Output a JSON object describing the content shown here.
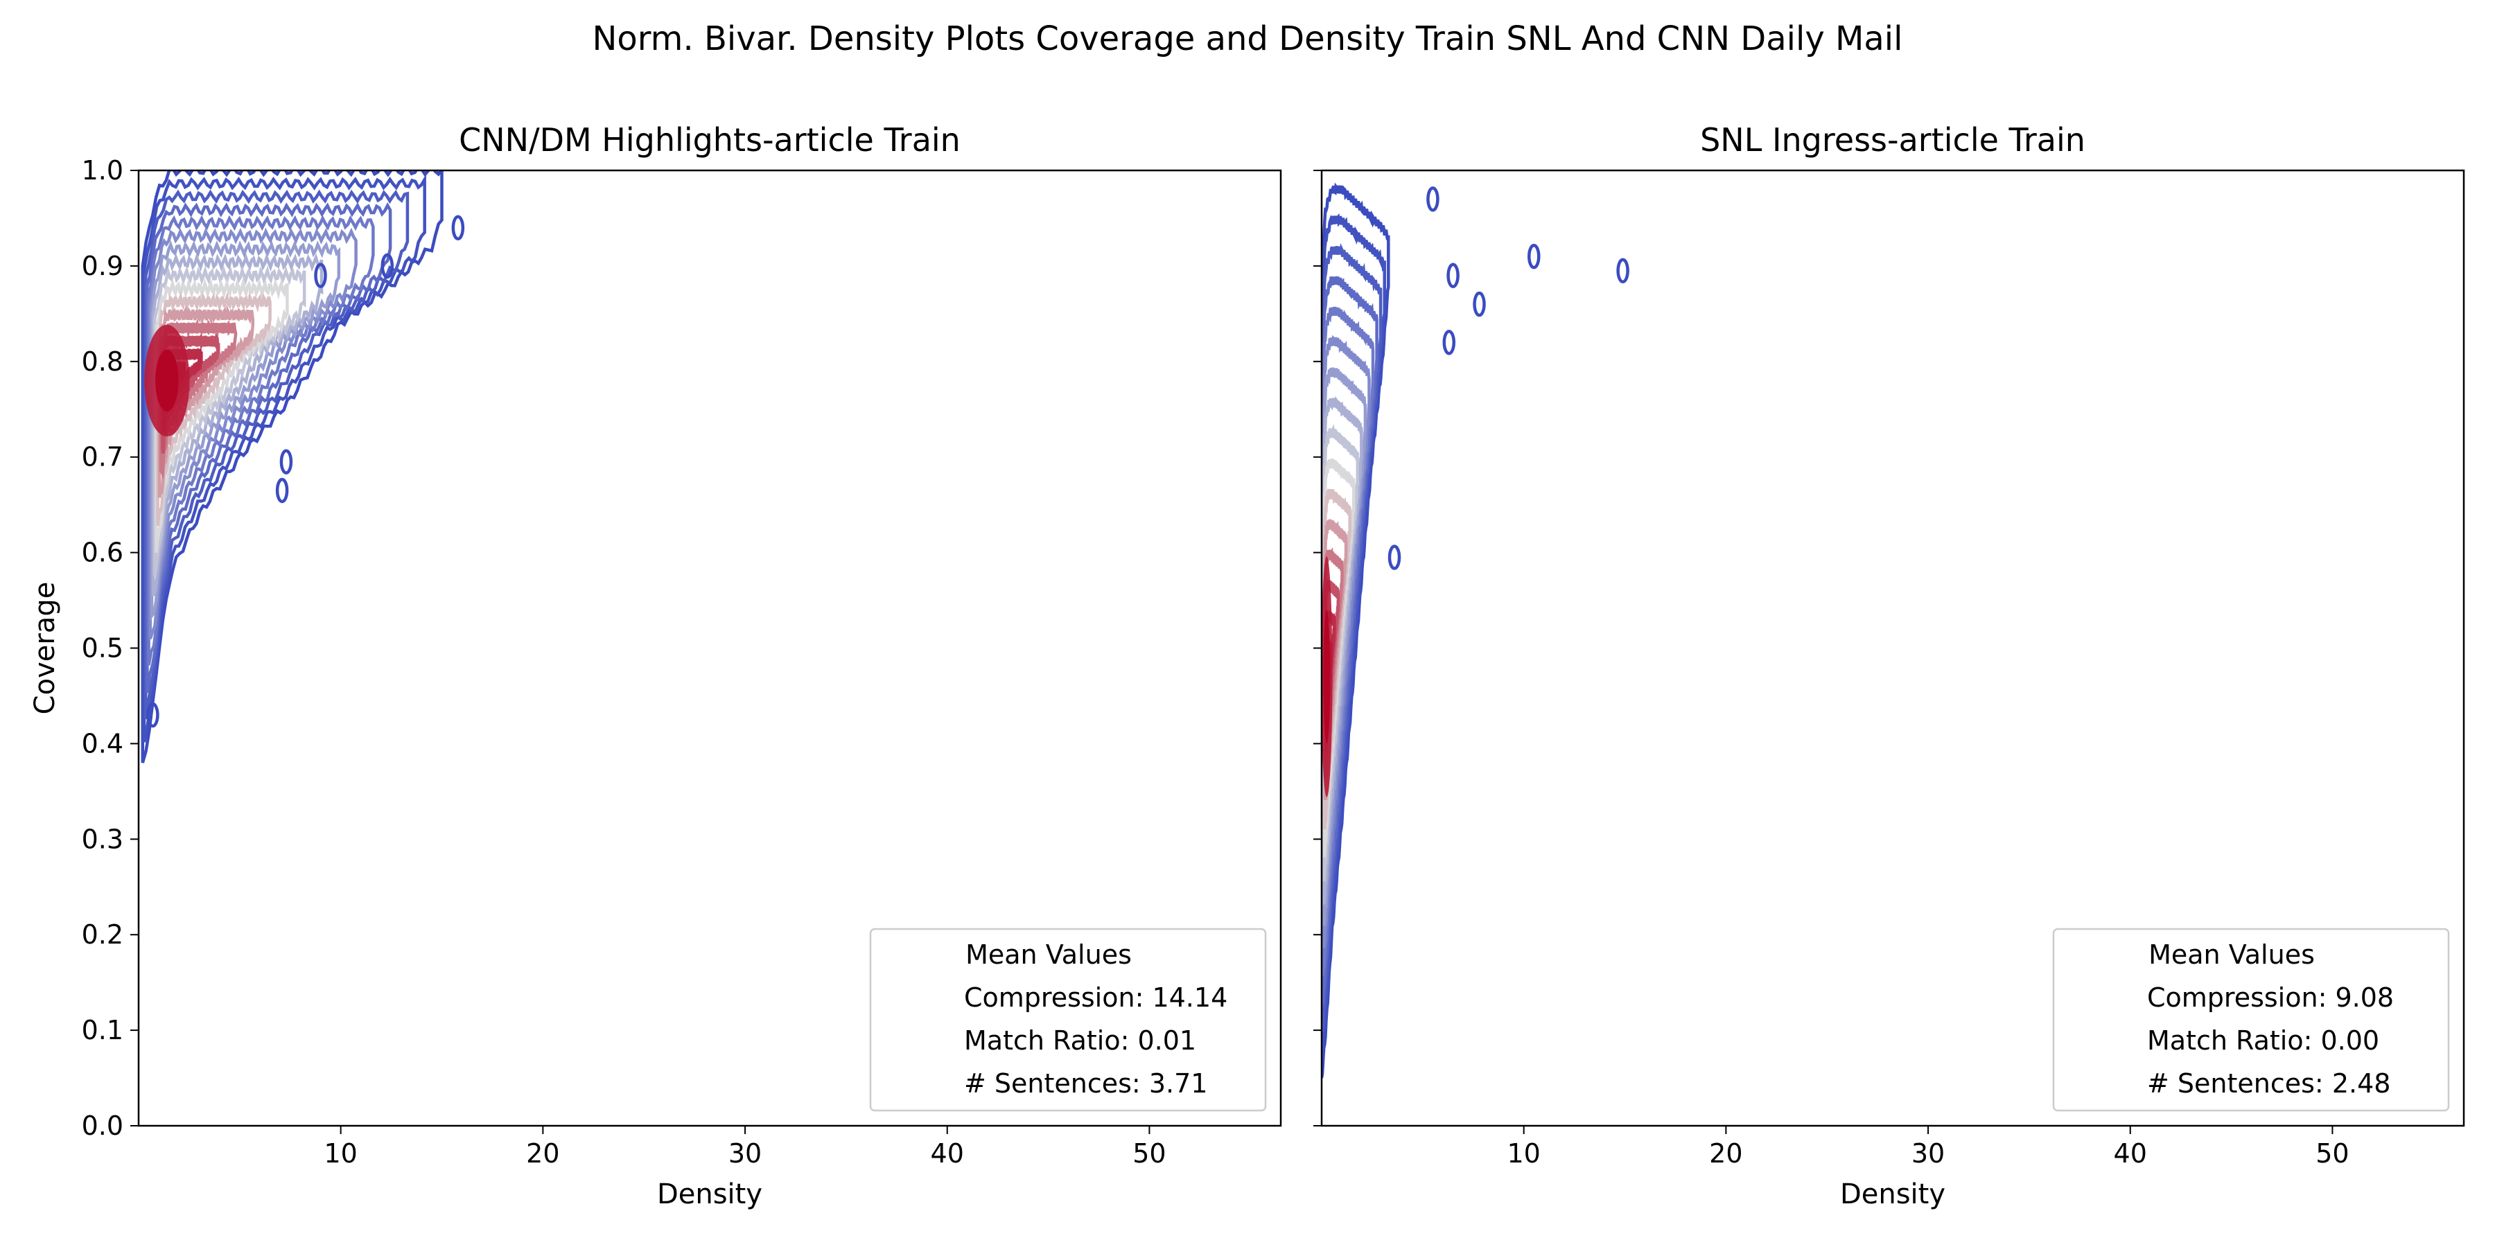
{
  "figure_title": "Norm. Bivar. Density Plots Coverage and Density Train SNL And CNN Daily Mail",
  "colors": {
    "contour_low": "#3b4cc0",
    "contour_mid": "#dddcdc",
    "contour_high": "#b40426",
    "axis": "#000000"
  },
  "chart_data": [
    {
      "type": "contour",
      "title": "CNN/DM Highlights-article Train",
      "xlabel": "Density",
      "ylabel": "Coverage",
      "xlim": [
        0,
        56.5
      ],
      "ylim": [
        0.0,
        1.0
      ],
      "xticks": [
        "10",
        "20",
        "30",
        "40",
        "50"
      ],
      "xtick_values": [
        10,
        20,
        30,
        40,
        50
      ],
      "yticks": [
        "0.0",
        "0.1",
        "0.2",
        "0.3",
        "0.4",
        "0.5",
        "0.6",
        "0.7",
        "0.8",
        "0.9",
        "1.0"
      ],
      "ytick_values": [
        0.0,
        0.1,
        0.2,
        0.3,
        0.4,
        0.5,
        0.6,
        0.7,
        0.8,
        0.9,
        1.0
      ],
      "colormap": "coolwarm",
      "peak": {
        "x": 1.4,
        "y": 0.78
      },
      "spread": {
        "sx": 3.2,
        "sy": 0.13
      },
      "envelope": {
        "x": [
          0.2,
          0.6,
          1.0,
          1.6,
          3.0,
          5.0,
          7.5,
          10.0,
          12.5,
          14.5,
          15.0
        ],
        "y_low": [
          0.38,
          0.42,
          0.5,
          0.58,
          0.64,
          0.7,
          0.76,
          0.84,
          0.88,
          0.92,
          0.95
        ],
        "y_high": [
          0.9,
          0.95,
          0.98,
          1.0,
          1.0,
          1.0,
          1.0,
          1.0,
          1.0,
          1.0,
          1.0
        ]
      },
      "isolated_islands": [
        {
          "x": 7.3,
          "y": 0.695
        },
        {
          "x": 7.1,
          "y": 0.665
        },
        {
          "x": 9.0,
          "y": 0.89
        },
        {
          "x": 12.3,
          "y": 0.9
        },
        {
          "x": 15.8,
          "y": 0.94
        },
        {
          "x": 0.7,
          "y": 0.43
        }
      ],
      "legend": {
        "title": "Mean Values",
        "lines": [
          "Compression: 14.14",
          "Match Ratio: 0.01",
          "# Sentences: 3.71"
        ],
        "placement": "lower-right"
      }
    },
    {
      "type": "contour",
      "title": "SNL Ingress-article Train",
      "xlabel": "Density",
      "xlim": [
        0,
        56.5
      ],
      "ylim": [
        0.0,
        1.0
      ],
      "xticks": [
        "10",
        "20",
        "30",
        "40",
        "50"
      ],
      "xtick_values": [
        10,
        20,
        30,
        40,
        50
      ],
      "ytick_values": [
        0.0,
        0.1,
        0.2,
        0.3,
        0.4,
        0.5,
        0.6,
        0.7,
        0.8,
        0.9,
        1.0
      ],
      "colormap": "coolwarm",
      "peak": {
        "x": 0.25,
        "y": 0.47
      },
      "spread": {
        "sx": 0.8,
        "sy": 0.28
      },
      "envelope": {
        "x": [
          0.0,
          0.2,
          0.5,
          1.0,
          1.5,
          2.0,
          2.5,
          3.0,
          3.3
        ],
        "y_low": [
          0.05,
          0.1,
          0.2,
          0.32,
          0.45,
          0.58,
          0.7,
          0.8,
          0.88
        ],
        "y_high": [
          0.9,
          0.96,
          0.98,
          0.98,
          0.97,
          0.96,
          0.95,
          0.94,
          0.93
        ]
      },
      "isolated_islands": [
        {
          "x": 3.6,
          "y": 0.595
        },
        {
          "x": 5.5,
          "y": 0.97
        },
        {
          "x": 6.3,
          "y": 0.82
        },
        {
          "x": 6.5,
          "y": 0.89
        },
        {
          "x": 7.8,
          "y": 0.86
        },
        {
          "x": 10.5,
          "y": 0.91
        },
        {
          "x": 14.9,
          "y": 0.895
        }
      ],
      "legend": {
        "title": "Mean Values",
        "lines": [
          "Compression: 9.08",
          "Match Ratio: 0.00",
          "# Sentences: 2.48"
        ],
        "placement": "lower-right"
      }
    }
  ]
}
